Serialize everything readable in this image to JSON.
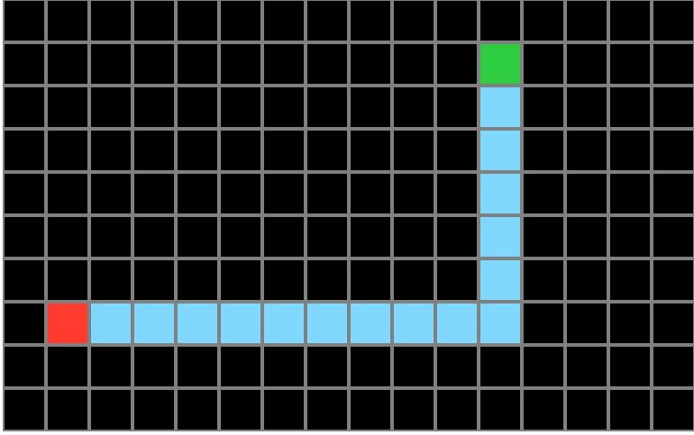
{
  "grid": {
    "cols": 16,
    "rows": 10,
    "empty_color": "#000000",
    "line_color": "#808080"
  },
  "colors": {
    "start": "#ff3b30",
    "goal": "#2ecc40",
    "path": "#80d8ff"
  },
  "start": {
    "col": 1,
    "row": 7
  },
  "goal": {
    "col": 11,
    "row": 1
  },
  "path": [
    {
      "col": 2,
      "row": 7
    },
    {
      "col": 3,
      "row": 7
    },
    {
      "col": 4,
      "row": 7
    },
    {
      "col": 5,
      "row": 7
    },
    {
      "col": 6,
      "row": 7
    },
    {
      "col": 7,
      "row": 7
    },
    {
      "col": 8,
      "row": 7
    },
    {
      "col": 9,
      "row": 7
    },
    {
      "col": 10,
      "row": 7
    },
    {
      "col": 11,
      "row": 7
    },
    {
      "col": 11,
      "row": 6
    },
    {
      "col": 11,
      "row": 5
    },
    {
      "col": 11,
      "row": 4
    },
    {
      "col": 11,
      "row": 3
    },
    {
      "col": 11,
      "row": 2
    }
  ]
}
